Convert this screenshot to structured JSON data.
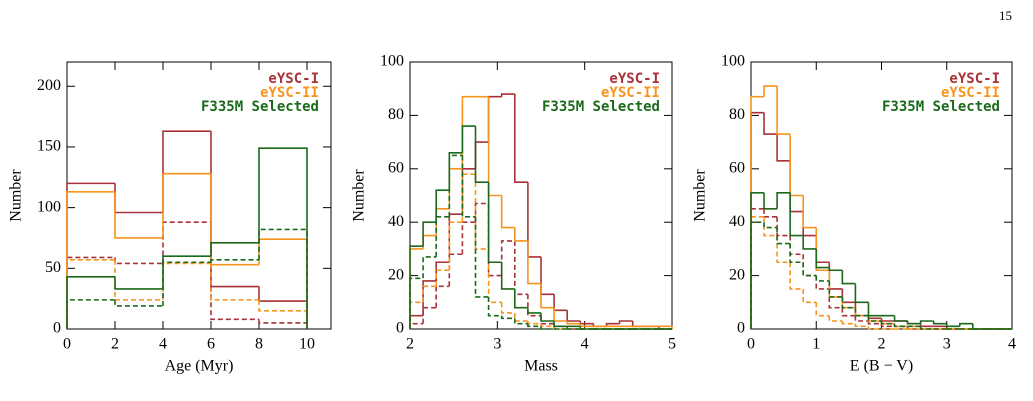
{
  "page_number": "15",
  "chart_data": [
    {
      "type": "histogram",
      "xlabel": "Age (Myr)",
      "ylabel": "Number",
      "xlim": [
        0,
        11
      ],
      "ylim": [
        0,
        220
      ],
      "xticks": [
        0,
        2,
        4,
        6,
        8,
        10
      ],
      "yticks": [
        0,
        50,
        100,
        150,
        200
      ],
      "bins": [
        0,
        2,
        4,
        6,
        8,
        10
      ],
      "series": [
        {
          "name": "eYSC-I",
          "color": "#a83238",
          "values": [
            120,
            96,
            163,
            35,
            23
          ],
          "values_dashed": [
            59,
            54,
            88,
            8,
            5
          ]
        },
        {
          "name": "eYSC-II",
          "color": "#f7941d",
          "values": [
            113,
            75,
            128,
            53,
            74
          ],
          "values_dashed": [
            57,
            24,
            54,
            24,
            15
          ]
        },
        {
          "name": "F335M Selected",
          "color": "#1b6a1b",
          "values": [
            43,
            33,
            60,
            71,
            149
          ],
          "values_dashed": [
            24,
            19,
            55,
            57,
            82
          ]
        }
      ]
    },
    {
      "type": "histogram",
      "xlabel": "Mass",
      "ylabel": "Number",
      "xlim": [
        2,
        5
      ],
      "ylim": [
        0,
        100
      ],
      "xticks": [
        2,
        3,
        4,
        5
      ],
      "yticks": [
        0,
        20,
        40,
        60,
        80,
        100
      ],
      "bins": [
        2.0,
        2.15,
        2.3,
        2.45,
        2.6,
        2.75,
        2.9,
        3.05,
        3.2,
        3.35,
        3.5,
        3.65,
        3.8,
        3.95,
        4.1,
        4.25,
        4.4,
        4.55,
        4.7,
        4.85,
        5.0
      ],
      "series": [
        {
          "name": "eYSC-I",
          "color": "#a83238",
          "values": [
            5,
            18,
            25,
            43,
            60,
            70,
            87,
            88,
            55,
            27,
            13,
            7,
            3,
            2,
            1,
            2,
            3,
            1,
            1,
            0
          ],
          "values_dashed": [
            2,
            8,
            16,
            28,
            40,
            47,
            20,
            33,
            13,
            5,
            2,
            1,
            0,
            0,
            0,
            0,
            0,
            0,
            0,
            0
          ]
        },
        {
          "name": "eYSC-II",
          "color": "#f7941d",
          "values": [
            30,
            35,
            45,
            60,
            87,
            87,
            50,
            38,
            33,
            17,
            8,
            3,
            2,
            1,
            1,
            1,
            1,
            1,
            1,
            1
          ],
          "values_dashed": [
            10,
            16,
            22,
            40,
            58,
            30,
            10,
            6,
            3,
            2,
            1,
            0,
            0,
            0,
            0,
            0,
            0,
            0,
            0,
            0
          ]
        },
        {
          "name": "F335M Selected",
          "color": "#1b6a1b",
          "values": [
            31,
            40,
            52,
            66,
            76,
            55,
            25,
            15,
            8,
            6,
            3,
            1,
            1,
            0,
            0,
            0,
            0,
            0,
            0,
            0
          ],
          "values_dashed": [
            19,
            27,
            42,
            65,
            42,
            12,
            5,
            4,
            2,
            1,
            0,
            0,
            0,
            0,
            0,
            0,
            0,
            0,
            0,
            0
          ]
        }
      ]
    },
    {
      "type": "histogram",
      "xlabel": "E (B − V)",
      "ylabel": "Number",
      "xlim": [
        0,
        4
      ],
      "ylim": [
        0,
        100
      ],
      "xticks": [
        0,
        1,
        2,
        3,
        4
      ],
      "yticks": [
        0,
        20,
        40,
        60,
        80,
        100
      ],
      "bins": [
        0,
        0.2,
        0.4,
        0.6,
        0.8,
        1.0,
        1.2,
        1.4,
        1.6,
        1.8,
        2.0,
        2.2,
        2.4,
        2.6,
        2.8,
        3.0,
        3.2,
        3.4,
        3.6,
        3.8,
        4.0
      ],
      "series": [
        {
          "name": "eYSC-I",
          "color": "#a83238",
          "values": [
            81,
            73,
            63,
            44,
            35,
            25,
            15,
            10,
            5,
            4,
            3,
            3,
            2,
            1,
            1,
            0,
            0,
            0,
            0,
            0
          ],
          "values_dashed": [
            45,
            42,
            35,
            28,
            20,
            15,
            8,
            5,
            3,
            2,
            1,
            1,
            0,
            0,
            0,
            0,
            0,
            0,
            0,
            0
          ]
        },
        {
          "name": "eYSC-II",
          "color": "#f7941d",
          "values": [
            87,
            91,
            73,
            50,
            38,
            22,
            12,
            8,
            5,
            3,
            2,
            1,
            1,
            0,
            0,
            0,
            0,
            0,
            0,
            0
          ],
          "values_dashed": [
            42,
            35,
            25,
            15,
            10,
            5,
            3,
            2,
            1,
            0,
            0,
            0,
            0,
            0,
            0,
            0,
            0,
            0,
            0,
            0
          ]
        },
        {
          "name": "F335M Selected",
          "color": "#1b6a1b",
          "values": [
            51,
            45,
            51,
            35,
            30,
            23,
            22,
            17,
            10,
            5,
            5,
            3,
            2,
            3,
            2,
            1,
            2,
            0,
            0,
            0
          ],
          "values_dashed": [
            40,
            38,
            32,
            25,
            20,
            18,
            12,
            8,
            5,
            3,
            2,
            1,
            1,
            0,
            0,
            0,
            0,
            0,
            0,
            0
          ]
        }
      ]
    }
  ]
}
